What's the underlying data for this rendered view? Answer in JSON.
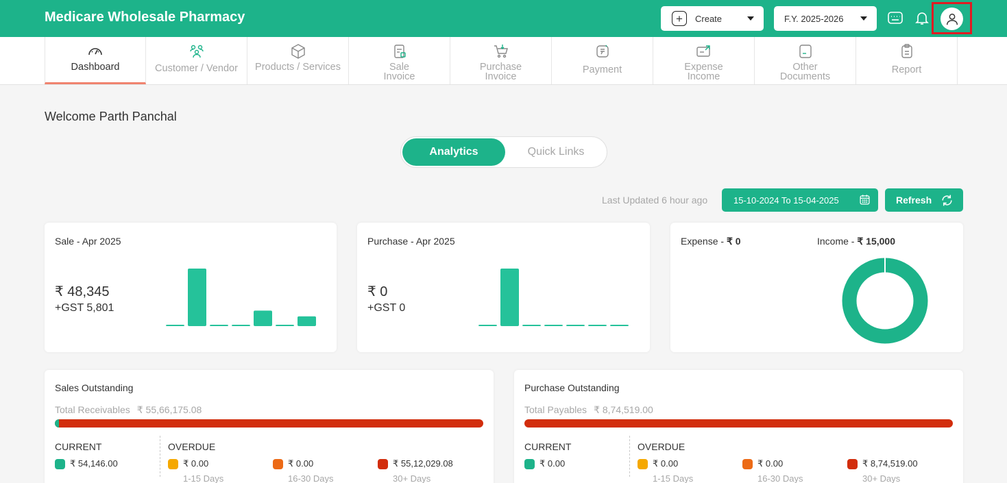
{
  "header": {
    "brand": "Medicare Wholesale Pharmacy",
    "create_label": "Create",
    "fy_label": "F.Y. 2025-2026"
  },
  "nav": [
    {
      "label": "Dashboard",
      "icon": "speedometer-icon",
      "active": true
    },
    {
      "label": "Customer / Vendor",
      "icon": "users-icon"
    },
    {
      "label": "Products / Services",
      "icon": "box-icon"
    },
    {
      "label": "Sale\nInvoice",
      "icon": "sale-invoice-icon"
    },
    {
      "label": "Purchase\nInvoice",
      "icon": "cart-icon"
    },
    {
      "label": "Payment",
      "icon": "payment-icon"
    },
    {
      "label": "Expense\nIncome",
      "icon": "expense-icon"
    },
    {
      "label": "Other\nDocuments",
      "icon": "document-icon"
    },
    {
      "label": "Report",
      "icon": "clipboard-icon"
    }
  ],
  "welcome": "Welcome Parth Panchal",
  "toggle": {
    "analytics": "Analytics",
    "quick_links": "Quick Links"
  },
  "toolbar": {
    "last_updated": "Last Updated 6 hour ago",
    "date_range": "15-10-2024 To 15-04-2025",
    "refresh": "Refresh"
  },
  "sale_card": {
    "title": "Sale - Apr 2025",
    "amount": "₹ 48,345",
    "gst": "+GST 5,801",
    "bars": [
      0.01,
      1.0,
      0.01,
      0.01,
      0.27,
      0.01,
      0.17
    ]
  },
  "purchase_card": {
    "title": "Purchase - Apr 2025",
    "amount": "₹ 0",
    "gst": "+GST 0",
    "bars": [
      0.01,
      1.0,
      0.01,
      0.01,
      0.01,
      0.01,
      0.01
    ]
  },
  "expense_card": {
    "expense_label": "Expense - ",
    "expense_value": "₹ 0",
    "income_label": "Income - ",
    "income_value": "₹ 15,000"
  },
  "sales_outstanding": {
    "title": "Sales Outstanding",
    "total_label": "Total Receivables",
    "total_value": "₹ 55,66,175.08",
    "current_fraction": 0.0097,
    "current_head": "CURRENT",
    "overdue_head": "OVERDUE",
    "current_value": "₹ 54,146.00",
    "overdue": [
      {
        "value": "₹ 0.00",
        "days": "1-15 Days",
        "color": "#f5a800"
      },
      {
        "value": "₹ 0.00",
        "days": "16-30 Days",
        "color": "#ec6a16"
      },
      {
        "value": "₹ 55,12,029.08",
        "days": "30+ Days",
        "color": "#d22d0c"
      }
    ]
  },
  "purchase_outstanding": {
    "title": "Purchase Outstanding",
    "total_label": "Total Payables",
    "total_value": "₹ 8,74,519.00",
    "current_fraction": 0,
    "current_head": "CURRENT",
    "overdue_head": "OVERDUE",
    "current_value": "₹ 0.00",
    "overdue": [
      {
        "value": "₹ 0.00",
        "days": "1-15 Days",
        "color": "#f5a800"
      },
      {
        "value": "₹ 0.00",
        "days": "16-30 Days",
        "color": "#ec6a16"
      },
      {
        "value": "₹ 8,74,519.00",
        "days": "30+ Days",
        "color": "#d22d0c"
      }
    ]
  },
  "colors": {
    "brand": "#1db38a",
    "overdue_bar": "#d22d0c",
    "highlight": "#e11b22"
  }
}
